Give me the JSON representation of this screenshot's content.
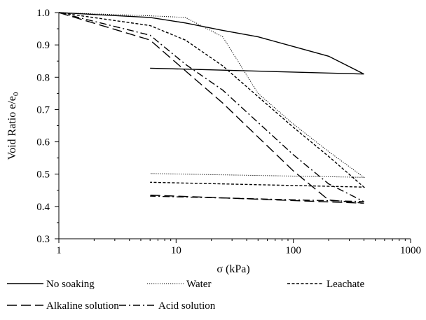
{
  "chart_data": {
    "type": "line",
    "xlabel": "σ (kPa)",
    "ylabel": "Void Ratio e/e",
    "ylabel_subscript": "0",
    "xscale": "log",
    "xlim": [
      1,
      1000
    ],
    "ylim": [
      0.3,
      1.0
    ],
    "xticks": [
      1,
      10,
      100,
      1000
    ],
    "xtick_labels": [
      "1",
      "10",
      "100",
      "1000"
    ],
    "yticks": [
      0.3,
      0.4,
      0.5,
      0.6,
      0.7,
      0.8,
      0.9,
      1.0
    ],
    "ytick_labels": [
      "0.3",
      "0.4",
      "0.5",
      "0.6",
      "0.7",
      "0.8",
      "0.9",
      "1.0"
    ],
    "grid": false,
    "legend_position": "bottom",
    "series": [
      {
        "name": "No soaking",
        "style": "solid",
        "x": [
          1,
          6,
          12,
          25,
          50,
          100,
          200,
          400,
          6
        ],
        "y": [
          1.0,
          0.985,
          0.968,
          0.945,
          0.925,
          0.895,
          0.865,
          0.81,
          0.828
        ]
      },
      {
        "name": "Water",
        "style": "dotted",
        "x": [
          1,
          6,
          12,
          25,
          50,
          100,
          200,
          400,
          6
        ],
        "y": [
          1.0,
          0.99,
          0.985,
          0.925,
          0.75,
          0.655,
          0.57,
          0.49,
          0.502
        ]
      },
      {
        "name": "Leachate",
        "style": "short-dash",
        "x": [
          1,
          6,
          12,
          25,
          50,
          100,
          200,
          400,
          6
        ],
        "y": [
          1.0,
          0.96,
          0.915,
          0.835,
          0.74,
          0.645,
          0.555,
          0.46,
          0.475
        ]
      },
      {
        "name": "Alkaline solution",
        "style": "long-dash",
        "x": [
          1,
          6,
          12,
          25,
          50,
          100,
          200,
          400,
          6
        ],
        "y": [
          1.0,
          0.915,
          0.82,
          0.72,
          0.615,
          0.51,
          0.42,
          0.41,
          0.435
        ]
      },
      {
        "name": "Acid solution",
        "style": "dash-dot",
        "x": [
          1,
          6,
          12,
          25,
          50,
          100,
          200,
          400,
          6
        ],
        "y": [
          1.0,
          0.93,
          0.84,
          0.76,
          0.66,
          0.56,
          0.47,
          0.415,
          0.432
        ]
      }
    ]
  }
}
